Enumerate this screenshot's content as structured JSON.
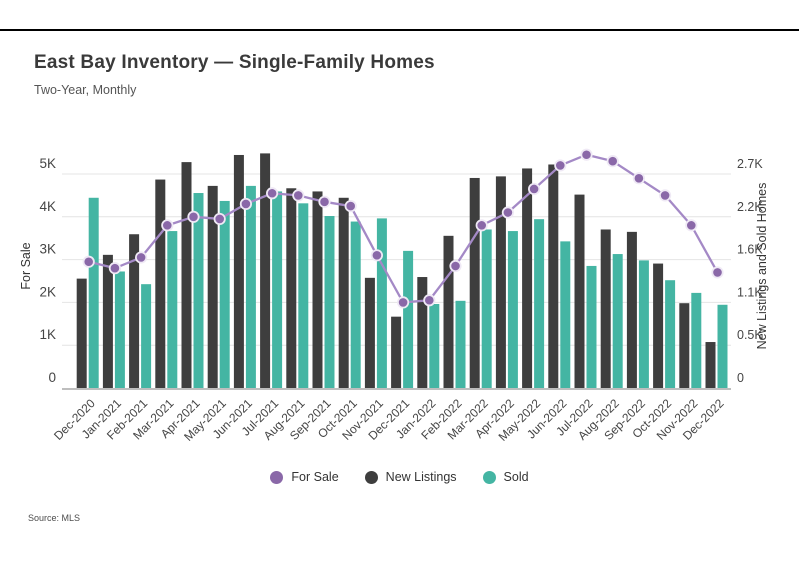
{
  "header": {
    "title": "East Bay Inventory — Single-Family Homes",
    "subtitle": "Two-Year, Monthly"
  },
  "source_note": "Source: MLS",
  "colors": {
    "for_sale_line": "#a489c6",
    "for_sale_marker": "#8a68a8",
    "for_sale_marker_ring": "#efe9f5",
    "new_listings_bar": "#3e3e3e",
    "sold_bar": "#44b5a3",
    "gridline": "#e4e4e4",
    "axis_line": "#a8a8a8",
    "tick_text": "#454545",
    "axis_title_text": "#333333"
  },
  "legend": {
    "items": [
      {
        "label": "For Sale",
        "color": "#8a68a8"
      },
      {
        "label": "New Listings",
        "color": "#3e3e3e"
      },
      {
        "label": "Sold",
        "color": "#44b5a3"
      }
    ]
  },
  "chart_data": {
    "type": "combo-bar-line",
    "title": "East Bay Inventory — Single-Family Homes",
    "subtitle": "Two-Year, Monthly",
    "categories": [
      "Dec-2020",
      "Jan-2021",
      "Feb-2021",
      "Mar-2021",
      "Apr-2021",
      "May-2021",
      "Jun-2021",
      "Jul-2021",
      "Aug-2021",
      "Sep-2021",
      "Oct-2021",
      "Nov-2021",
      "Dec-2021",
      "Jan-2022",
      "Feb-2022",
      "Mar-2022",
      "Apr-2022",
      "May-2022",
      "Jun-2022",
      "Jul-2022",
      "Aug-2022",
      "Sep-2022",
      "Oct-2022",
      "Nov-2022",
      "Dec-2022"
    ],
    "series": [
      {
        "name": "For Sale",
        "type": "line",
        "axis": "left",
        "values": [
          2950,
          2800,
          3050,
          3800,
          4000,
          3950,
          4300,
          4550,
          4500,
          4350,
          4250,
          3100,
          2000,
          2050,
          2850,
          3800,
          4100,
          4650,
          5200,
          5450,
          5300,
          4900,
          4500,
          3800,
          2700
        ]
      },
      {
        "name": "New Listings",
        "type": "bar",
        "axis": "right",
        "values": [
          1380,
          1680,
          1940,
          2630,
          2850,
          2550,
          2940,
          2960,
          2520,
          2480,
          2400,
          1390,
          900,
          1400,
          1920,
          2650,
          2670,
          2770,
          2820,
          2440,
          2000,
          1970,
          1570,
          1070,
          580
        ]
      },
      {
        "name": "Sold",
        "type": "bar",
        "axis": "right",
        "values": [
          2400,
          1470,
          1310,
          1980,
          2460,
          2360,
          2550,
          2480,
          2330,
          2170,
          2100,
          2140,
          1730,
          1060,
          1100,
          2000,
          1980,
          2130,
          1850,
          1540,
          1690,
          1610,
          1360,
          1200,
          1050
        ]
      }
    ],
    "left_axis": {
      "label": "For Sale",
      "ticks": [
        "0",
        "1K",
        "2K",
        "3K",
        "4K",
        "5K"
      ],
      "tick_values": [
        0,
        1000,
        2000,
        3000,
        4000,
        5000
      ],
      "range": [
        0,
        5680
      ],
      "grid": true
    },
    "right_axis": {
      "label": "New Listings and Sold Homes",
      "ticks": [
        "0",
        "0.5K",
        "1.1K",
        "1.6K",
        "2.2K",
        "2.7K"
      ],
      "tick_values": [
        0,
        540,
        1080,
        1620,
        2160,
        2700
      ],
      "range": [
        0,
        3067
      ],
      "grid": false
    },
    "legend_position": "bottom-center"
  }
}
